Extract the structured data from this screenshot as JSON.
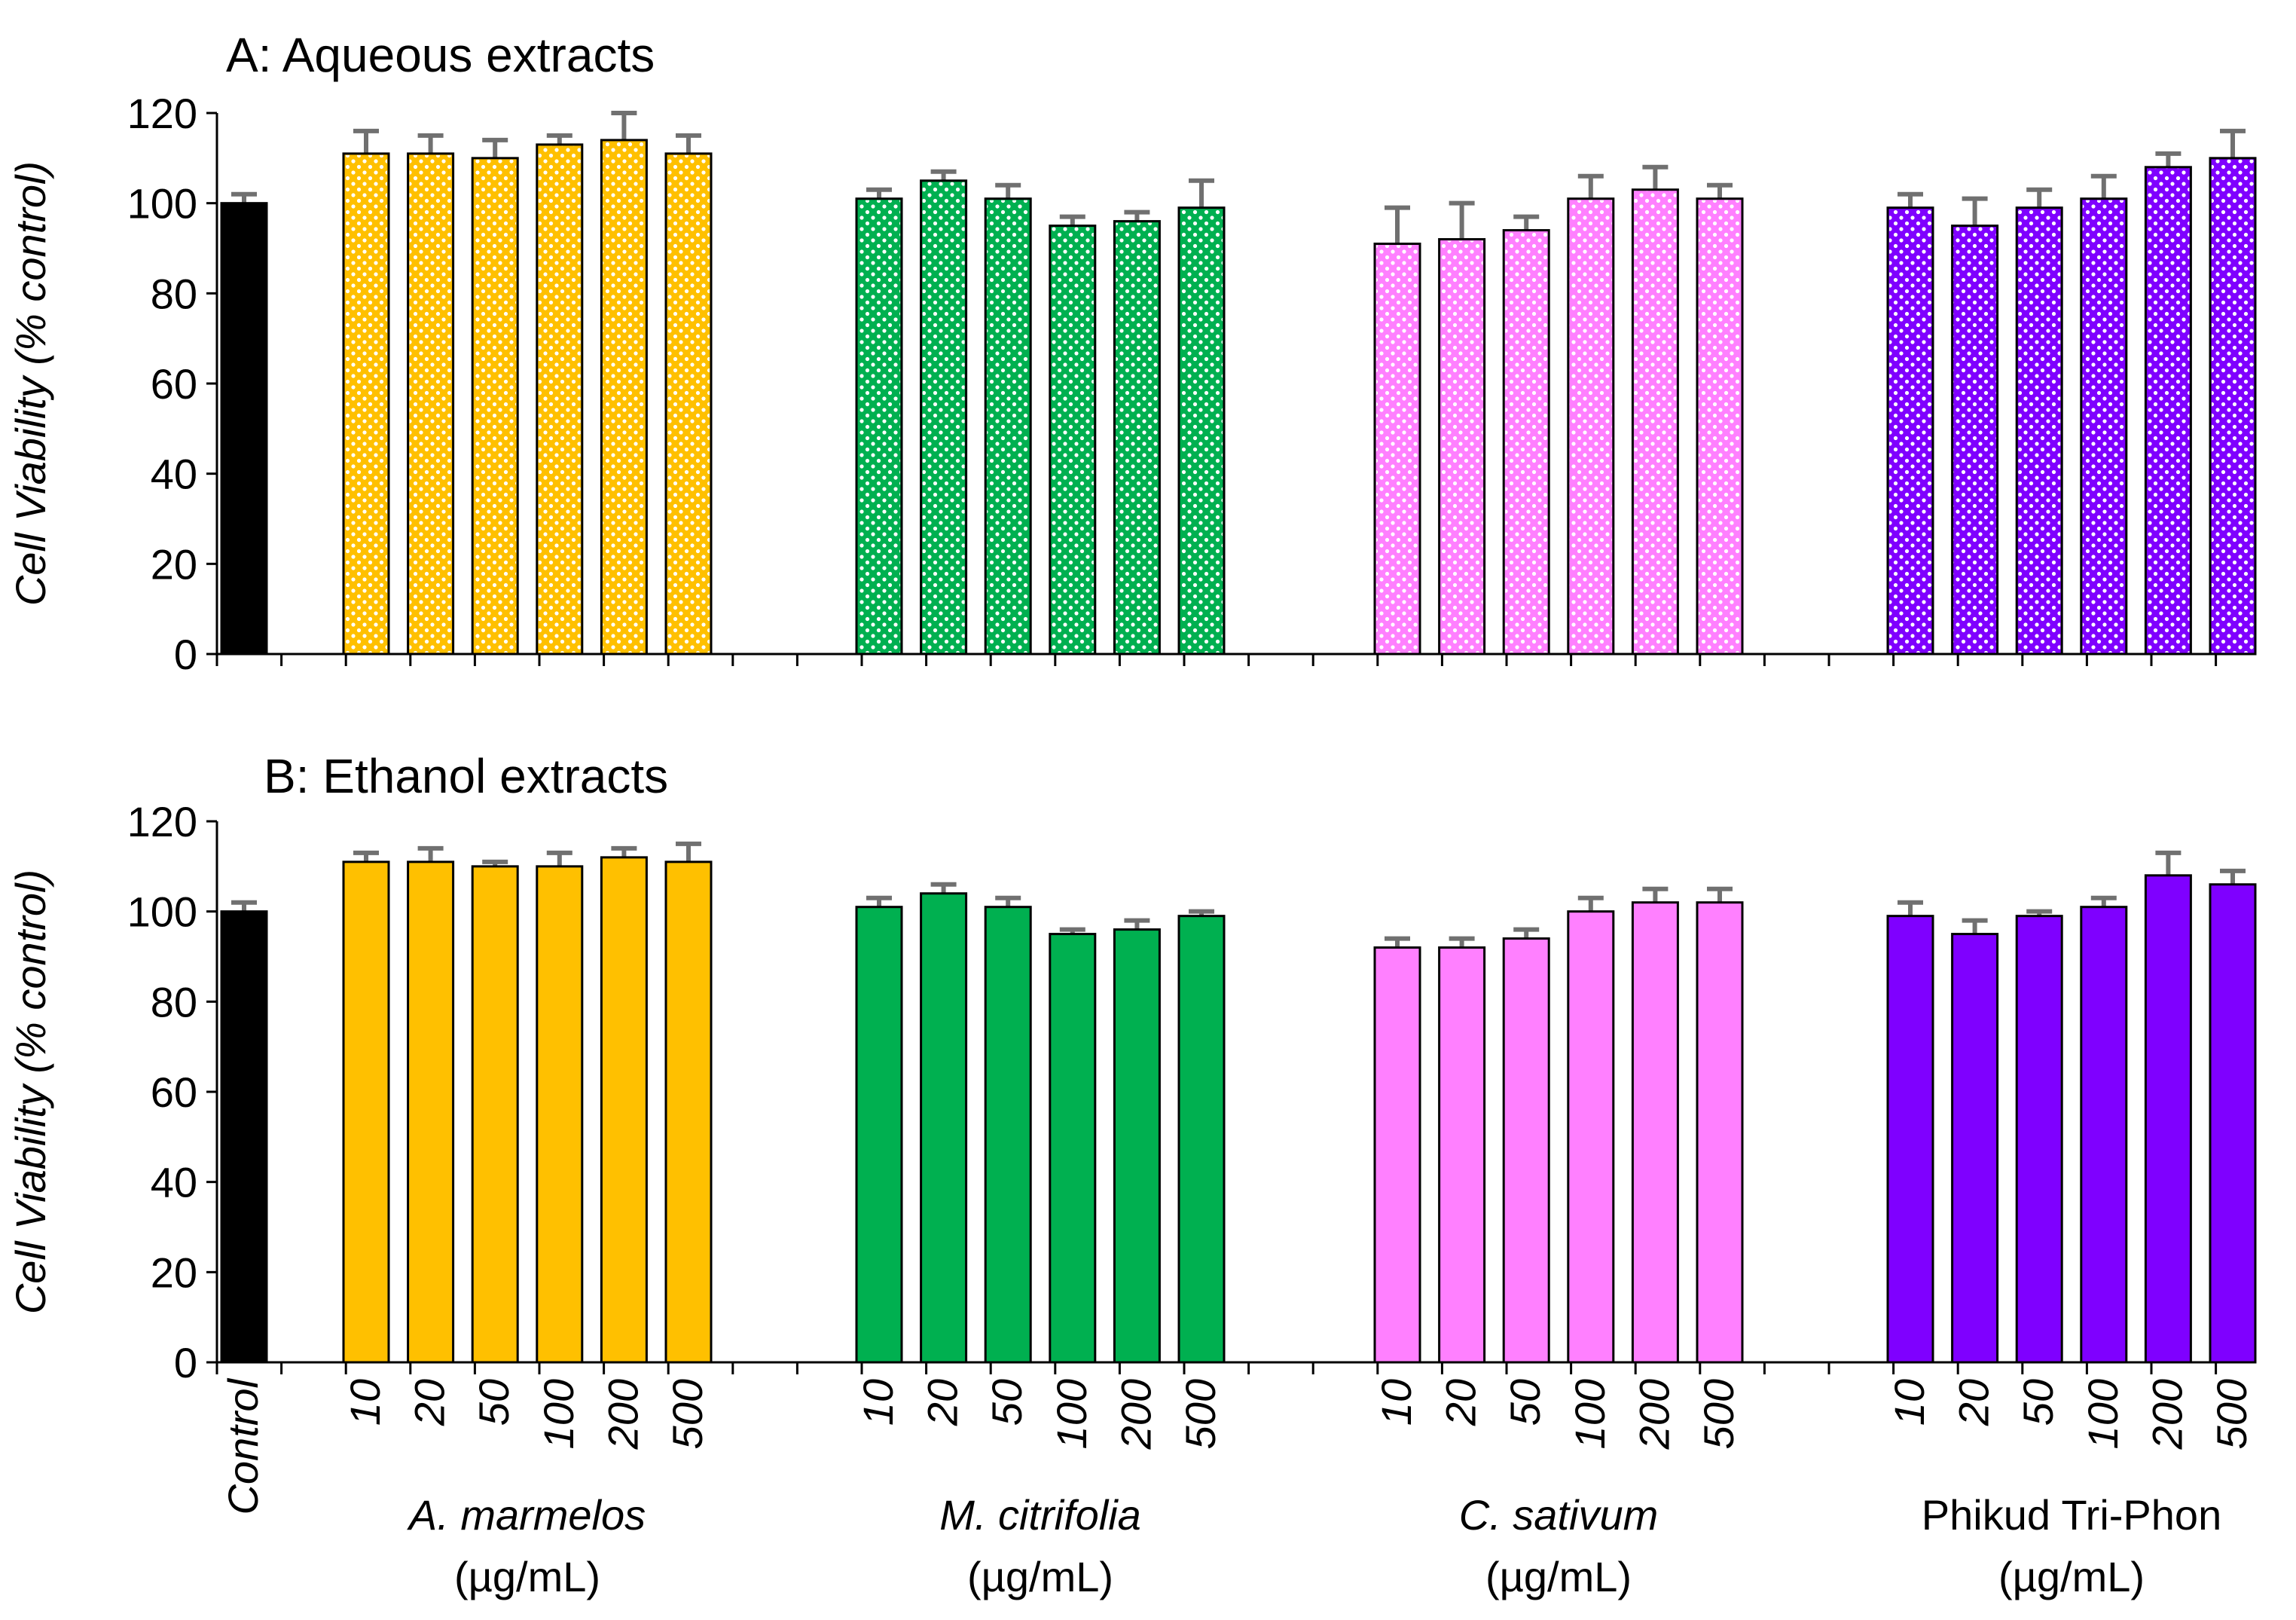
{
  "chart_data": [
    {
      "type": "bar",
      "panel": "A",
      "title": "A:  Aqueous extracts",
      "ylabel_main": "Cell Viability",
      "ylabel_unit": "(% control)",
      "ylim": [
        0,
        120
      ],
      "yticks": [
        "0",
        "20",
        "40",
        "60",
        "80",
        "100",
        "120"
      ],
      "pattern": "dotted",
      "control": {
        "label": "Control",
        "value": 100,
        "error": 2,
        "color": "#000000"
      },
      "groups": [
        {
          "name": "A. marmelos",
          "italic": true,
          "unit": "(µg/mL)",
          "color": "#FFC000",
          "categories": [
            "10",
            "20",
            "50",
            "100",
            "200",
            "500"
          ],
          "values": [
            111,
            111,
            110,
            113,
            114,
            111
          ],
          "errors": [
            5,
            4,
            4,
            2,
            6,
            4
          ]
        },
        {
          "name": "M. citrifolia",
          "italic": true,
          "unit": "(µg/mL)",
          "color": "#00B050",
          "categories": [
            "10",
            "20",
            "50",
            "100",
            "200",
            "500"
          ],
          "values": [
            101,
            105,
            101,
            95,
            96,
            99
          ],
          "errors": [
            2,
            2,
            3,
            2,
            2,
            6
          ]
        },
        {
          "name": "C. sativum",
          "italic": true,
          "unit": "(µg/mL)",
          "color": "#FF80FF",
          "categories": [
            "10",
            "20",
            "50",
            "100",
            "200",
            "500"
          ],
          "values": [
            91,
            92,
            94,
            101,
            103,
            101
          ],
          "errors": [
            8,
            8,
            3,
            5,
            5,
            3
          ]
        },
        {
          "name": "Phikud Tri-Phon",
          "italic": false,
          "unit": "(µg/mL)",
          "color": "#7F00FF",
          "categories": [
            "10",
            "20",
            "50",
            "100",
            "200",
            "500"
          ],
          "values": [
            99,
            95,
            99,
            101,
            108,
            110
          ],
          "errors": [
            3,
            6,
            4,
            5,
            3,
            6
          ]
        }
      ]
    },
    {
      "type": "bar",
      "panel": "B",
      "title": "B:  Ethanol extracts",
      "ylabel_main": "Cell Viability",
      "ylabel_unit": "(% control)",
      "ylim": [
        0,
        120
      ],
      "yticks": [
        "0",
        "20",
        "40",
        "60",
        "80",
        "100",
        "120"
      ],
      "pattern": "solid",
      "control": {
        "label": "Control",
        "value": 100,
        "error": 2,
        "color": "#000000"
      },
      "groups": [
        {
          "name": "A. marmelos",
          "italic": true,
          "unit": "(µg/mL)",
          "color": "#FFC000",
          "categories": [
            "10",
            "20",
            "50",
            "100",
            "200",
            "500"
          ],
          "values": [
            111,
            111,
            110,
            110,
            112,
            111
          ],
          "errors": [
            2,
            3,
            1,
            3,
            2,
            4
          ]
        },
        {
          "name": "M. citrifolia",
          "italic": true,
          "unit": "(µg/mL)",
          "color": "#00B050",
          "categories": [
            "10",
            "20",
            "50",
            "100",
            "200",
            "500"
          ],
          "values": [
            101,
            104,
            101,
            95,
            96,
            99
          ],
          "errors": [
            2,
            2,
            2,
            1,
            2,
            1
          ]
        },
        {
          "name": "C. sativum",
          "italic": true,
          "unit": "(µg/mL)",
          "color": "#FF80FF",
          "categories": [
            "10",
            "20",
            "50",
            "100",
            "200",
            "500"
          ],
          "values": [
            92,
            92,
            94,
            100,
            102,
            102
          ],
          "errors": [
            2,
            2,
            2,
            3,
            3,
            3
          ]
        },
        {
          "name": "Phikud Tri-Phon",
          "italic": false,
          "unit": "(µg/mL)",
          "color": "#7F00FF",
          "categories": [
            "10",
            "20",
            "50",
            "100",
            "200",
            "500"
          ],
          "values": [
            99,
            95,
            99,
            101,
            108,
            106
          ],
          "errors": [
            3,
            3,
            1,
            2,
            5,
            3
          ]
        }
      ]
    }
  ]
}
